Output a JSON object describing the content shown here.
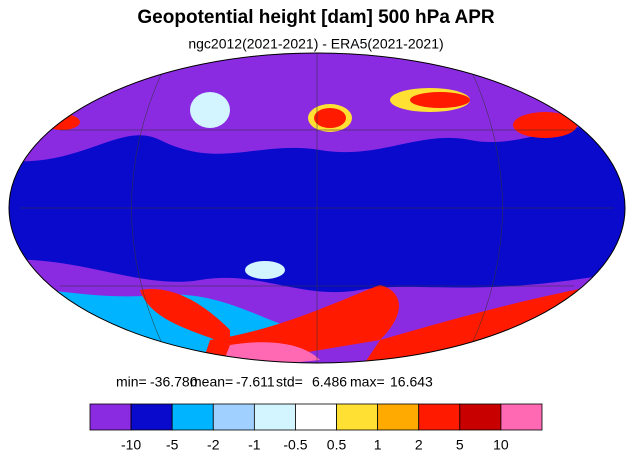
{
  "title": "Geopotential height [dam] 500 hPa APR",
  "subtitle": "ngc2012(2021-2021) - ERA5(2021-2021)",
  "stats": [
    {
      "label": "min=",
      "value": "-36.780"
    },
    {
      "label": "mean=",
      "value": "-7.611"
    },
    {
      "label": "std=",
      "value": "6.486"
    },
    {
      "label": "max=",
      "value": "16.643"
    }
  ],
  "colorbar": {
    "colors": [
      "#8a2be2",
      "#0a0acd",
      "#00b4ff",
      "#a0d0ff",
      "#d2f5ff",
      "#ffffff",
      "#ffe033",
      "#ffaa00",
      "#ff1a00",
      "#c80000",
      "#ff69b4"
    ],
    "labels": [
      -10,
      -5,
      -2,
      -1,
      -0.5,
      0.5,
      1,
      2,
      5,
      10
    ]
  }
}
